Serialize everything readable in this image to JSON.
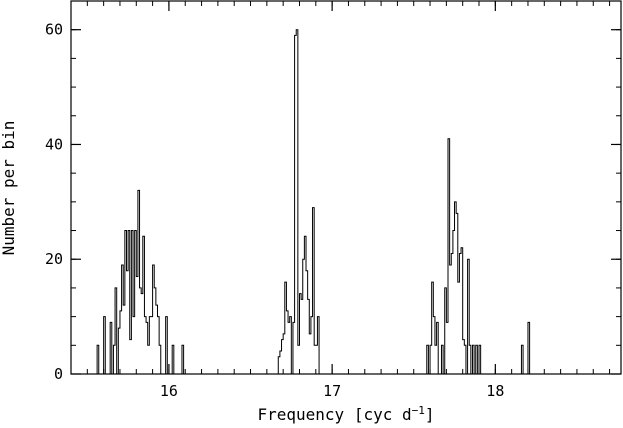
{
  "chart_data": {
    "type": "bar",
    "title": "",
    "xlabel": "Frequency [cyc d",
    "xlabel_sup": "−1",
    "xlabel_close": "]",
    "ylabel": "Number per bin",
    "xlim": [
      15.4,
      18.77
    ],
    "ylim": [
      0,
      65
    ],
    "xticks": [
      16,
      17,
      18
    ],
    "xtick_labels": [
      "16",
      "17",
      "18"
    ],
    "yticks": [
      0,
      20,
      40,
      60
    ],
    "ytick_labels": [
      "0",
      "20",
      "40",
      "60"
    ],
    "x_minor_step": 0.1,
    "y_minor_step": 5,
    "bin_width": 0.01,
    "bins": [
      [
        15.56,
        5
      ],
      [
        15.6,
        10
      ],
      [
        15.64,
        9
      ],
      [
        15.66,
        5
      ],
      [
        15.67,
        15
      ],
      [
        15.69,
        8
      ],
      [
        15.7,
        11
      ],
      [
        15.71,
        19
      ],
      [
        15.72,
        12
      ],
      [
        15.73,
        25
      ],
      [
        15.74,
        18
      ],
      [
        15.75,
        25
      ],
      [
        15.76,
        6
      ],
      [
        15.77,
        25
      ],
      [
        15.78,
        10
      ],
      [
        15.79,
        25
      ],
      [
        15.8,
        17
      ],
      [
        15.81,
        32
      ],
      [
        15.82,
        15
      ],
      [
        15.83,
        14
      ],
      [
        15.84,
        24
      ],
      [
        15.85,
        10
      ],
      [
        15.86,
        9
      ],
      [
        15.87,
        5
      ],
      [
        15.88,
        10
      ],
      [
        15.89,
        10
      ],
      [
        15.9,
        19
      ],
      [
        15.91,
        15
      ],
      [
        15.92,
        12
      ],
      [
        15.93,
        10
      ],
      [
        15.94,
        5
      ],
      [
        15.98,
        10
      ],
      [
        16.02,
        5
      ],
      [
        16.08,
        5
      ],
      [
        16.67,
        3
      ],
      [
        16.68,
        4
      ],
      [
        16.69,
        6
      ],
      [
        16.7,
        7
      ],
      [
        16.71,
        16
      ],
      [
        16.72,
        11
      ],
      [
        16.73,
        9
      ],
      [
        16.74,
        10
      ],
      [
        16.76,
        9
      ],
      [
        16.77,
        59
      ],
      [
        16.78,
        60
      ],
      [
        16.79,
        5
      ],
      [
        16.8,
        14
      ],
      [
        16.81,
        13
      ],
      [
        16.82,
        20
      ],
      [
        16.83,
        24
      ],
      [
        16.84,
        18
      ],
      [
        16.85,
        13
      ],
      [
        16.86,
        7
      ],
      [
        16.87,
        10
      ],
      [
        16.88,
        29
      ],
      [
        16.89,
        5
      ],
      [
        16.9,
        5
      ],
      [
        16.91,
        10
      ],
      [
        17.58,
        5
      ],
      [
        17.6,
        5
      ],
      [
        17.61,
        16
      ],
      [
        17.62,
        10
      ],
      [
        17.63,
        5
      ],
      [
        17.64,
        9
      ],
      [
        17.67,
        5
      ],
      [
        17.69,
        15
      ],
      [
        17.7,
        9
      ],
      [
        17.71,
        41
      ],
      [
        17.72,
        19
      ],
      [
        17.73,
        21
      ],
      [
        17.74,
        25
      ],
      [
        17.75,
        30
      ],
      [
        17.76,
        28
      ],
      [
        17.77,
        16
      ],
      [
        17.78,
        21
      ],
      [
        17.79,
        22
      ],
      [
        17.8,
        6
      ],
      [
        17.81,
        5
      ],
      [
        17.83,
        20
      ],
      [
        17.84,
        5
      ],
      [
        17.86,
        5
      ],
      [
        17.88,
        5
      ],
      [
        17.9,
        5
      ],
      [
        18.16,
        5
      ],
      [
        18.2,
        9
      ]
    ]
  }
}
